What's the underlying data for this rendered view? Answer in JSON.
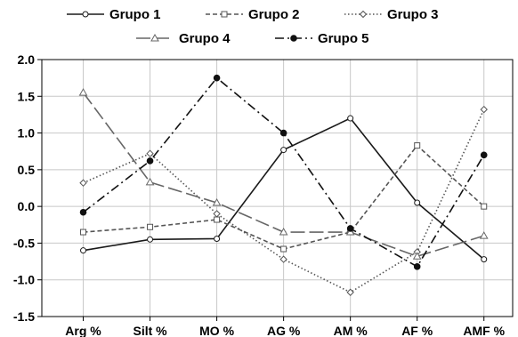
{
  "chart_data": {
    "type": "line",
    "title": "",
    "xlabel": "",
    "ylabel": "",
    "categories": [
      "Arg %",
      "Silt %",
      "MO %",
      "AG %",
      "AM %",
      "AF %",
      "AMF %"
    ],
    "ylim": [
      -1.5,
      2.0
    ],
    "yticks": [
      "2.0",
      "1.5",
      "1.0",
      "0.5",
      "0.0",
      "-0.5",
      "-1.0",
      "-1.5"
    ],
    "grid": true,
    "legend_position": "top",
    "series": [
      {
        "name": "Grupo 1",
        "values": [
          -0.6,
          -0.45,
          -0.44,
          0.77,
          1.2,
          0.05,
          -0.72
        ],
        "color": "#1a1a1a",
        "dash": "solid",
        "marker": "circle-open"
      },
      {
        "name": "Grupo 2",
        "values": [
          -0.35,
          -0.28,
          -0.18,
          -0.58,
          -0.35,
          0.83,
          0.0
        ],
        "color": "#555555",
        "dash": "dash-short",
        "marker": "square-open"
      },
      {
        "name": "Grupo 3",
        "values": [
          0.32,
          0.72,
          -0.1,
          -0.72,
          -1.17,
          -0.62,
          1.32
        ],
        "color": "#555555",
        "dash": "dotted",
        "marker": "diamond-open"
      },
      {
        "name": "Grupo 4",
        "values": [
          1.55,
          0.33,
          0.05,
          -0.35,
          -0.35,
          -0.68,
          -0.4
        ],
        "color": "#666666",
        "dash": "dash-long",
        "marker": "triangle-open"
      },
      {
        "name": "Grupo 5",
        "values": [
          -0.08,
          0.62,
          1.75,
          1.0,
          -0.3,
          -0.82,
          0.7
        ],
        "color": "#111111",
        "dash": "dash-dot",
        "marker": "circle-filled"
      }
    ]
  }
}
